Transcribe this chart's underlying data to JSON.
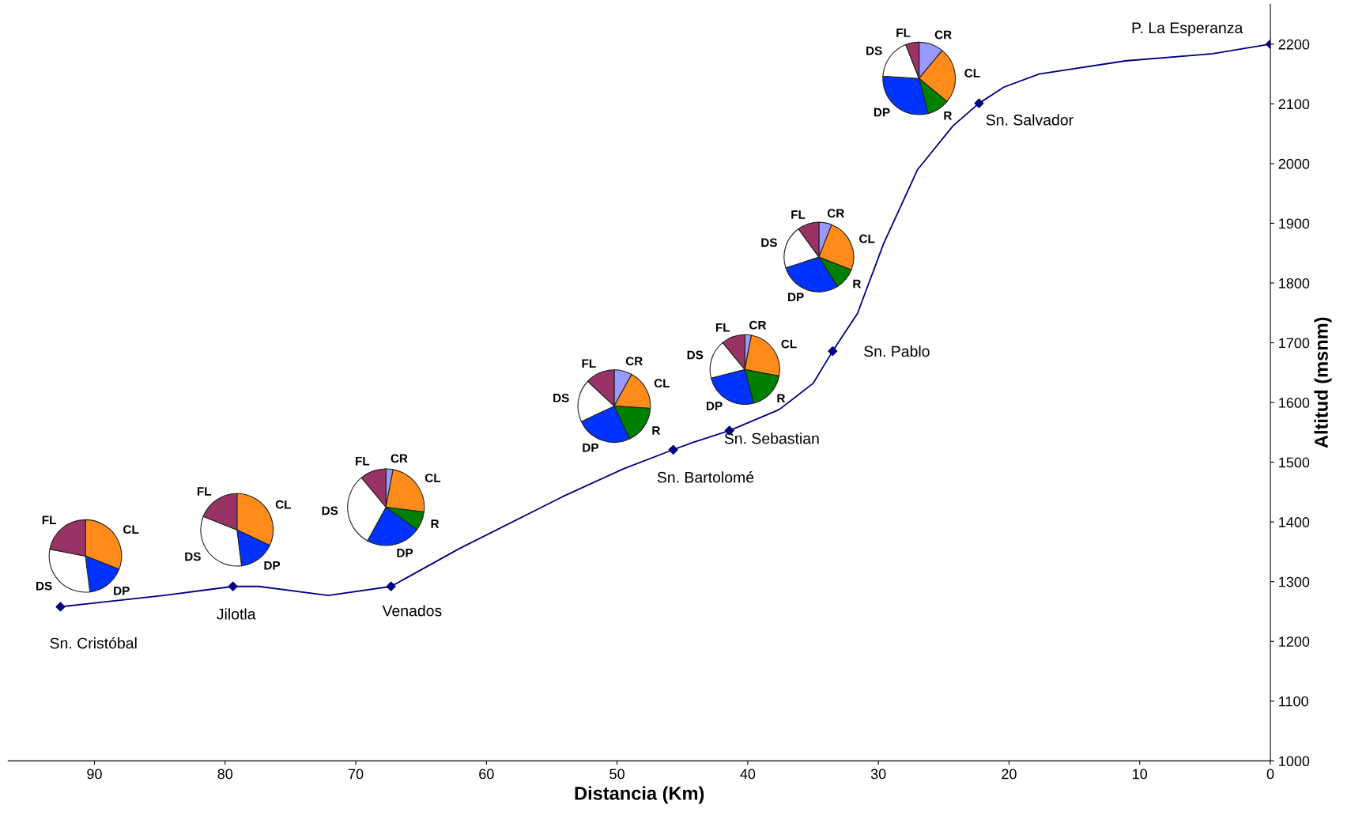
{
  "chart_data": [
    {
      "type": "line",
      "xlabel": "Distancia (Km)",
      "ylabel": "Altitud (msnm)",
      "xlim": [
        96.6,
        0
      ],
      "xticks": [
        90,
        80,
        70,
        60,
        50,
        40,
        30,
        20,
        10,
        0
      ],
      "ylim": [
        1000,
        2267
      ],
      "yticks": [
        1000,
        1100,
        1200,
        1300,
        1400,
        1500,
        1600,
        1700,
        1800,
        1900,
        2000,
        2100,
        2200
      ],
      "grid": false,
      "series": [
        {
          "type": "line",
          "color": "#000080",
          "marker": "none",
          "x": [
            92.6,
            84.7,
            79.4,
            77.4,
            72.1,
            67.3,
            62.1,
            54.2,
            49.5,
            45.7,
            44.2,
            41.4,
            37.6,
            35.0,
            33.5,
            31.6,
            29.6,
            27.0,
            24.3,
            22.3,
            20.4,
            17.7,
            11.1,
            4.4,
            0
          ],
          "values": [
            1258,
            1277,
            1292,
            1292,
            1277,
            1292,
            1355,
            1442,
            1489,
            1521,
            1533,
            1553,
            1588,
            1632,
            1686,
            1749,
            1866,
            1990,
            2063,
            2101,
            2128,
            2150,
            2172,
            2184,
            2200
          ]
        },
        {
          "type": "scatter",
          "color": "#000080",
          "marker": "diamond",
          "x": [
            92.6,
            79.4,
            67.3,
            45.7,
            41.4,
            33.5,
            22.3,
            0
          ],
          "values": [
            1258,
            1292,
            1292,
            1521,
            1553,
            1686,
            2101,
            2200
          ]
        }
      ],
      "annotations": [
        {
          "text": "Sn. Cristóbal",
          "x": 92.6,
          "y": 1258
        },
        {
          "text": "Jilotla",
          "x": 79.4,
          "y": 1292
        },
        {
          "text": "Venados",
          "x": 67.3,
          "y": 1292
        },
        {
          "text": "Sn. Bartolomé",
          "x": 45.7,
          "y": 1521
        },
        {
          "text": "Sn. Sebastian",
          "x": 41.4,
          "y": 1553
        },
        {
          "text": "Sn. Pablo",
          "x": 33.5,
          "y": 1686
        },
        {
          "text": "Sn. Salvador",
          "x": 22.3,
          "y": 2101
        },
        {
          "text": "P. La Esperanza",
          "x": 0,
          "y": 2200
        }
      ]
    },
    {
      "type": "pie",
      "categories": [
        "CL",
        "DP",
        "DS",
        "FL"
      ],
      "values": [
        31,
        17,
        30,
        22
      ],
      "colors": [
        "#ff8c1a",
        "#0033ff",
        "#ffffff",
        "#993366"
      ]
    },
    {
      "type": "pie",
      "categories": [
        "CL",
        "DP",
        "DS",
        "FL"
      ],
      "values": [
        32,
        16,
        33,
        19
      ],
      "colors": [
        "#ff8c1a",
        "#0033ff",
        "#ffffff",
        "#993366"
      ]
    },
    {
      "type": "pie",
      "categories": [
        "CR",
        "CL",
        "R",
        "DP",
        "DS",
        "FL"
      ],
      "values": [
        3,
        24,
        8,
        23,
        31,
        11
      ],
      "colors": [
        "#9999ff",
        "#ff8c1a",
        "#008000",
        "#0033ff",
        "#ffffff",
        "#993366"
      ]
    },
    {
      "type": "pie",
      "categories": [
        "CR",
        "CL",
        "R",
        "DP",
        "DS",
        "FL"
      ],
      "values": [
        8,
        18,
        17,
        25,
        19,
        13
      ],
      "colors": [
        "#9999ff",
        "#ff8c1a",
        "#008000",
        "#0033ff",
        "#ffffff",
        "#993366"
      ]
    },
    {
      "type": "pie",
      "categories": [
        "CR",
        "CL",
        "R",
        "DP",
        "DS",
        "FL"
      ],
      "values": [
        3,
        25,
        18,
        25,
        18,
        11
      ],
      "colors": [
        "#9999ff",
        "#ff8c1a",
        "#008000",
        "#0033ff",
        "#ffffff",
        "#993366"
      ]
    },
    {
      "type": "pie",
      "categories": [
        "CR",
        "CL",
        "R",
        "DP",
        "DS",
        "FL"
      ],
      "values": [
        6,
        25,
        10,
        29,
        20,
        10
      ],
      "colors": [
        "#9999ff",
        "#ff8c1a",
        "#008000",
        "#0033ff",
        "#ffffff",
        "#993366"
      ]
    },
    {
      "type": "pie",
      "categories": [
        "CR",
        "CL",
        "R",
        "DP",
        "DS",
        "FL"
      ],
      "values": [
        11,
        25,
        10,
        30,
        18,
        6
      ],
      "colors": [
        "#9999ff",
        "#ff8c1a",
        "#008000",
        "#0033ff",
        "#ffffff",
        "#993366"
      ]
    }
  ]
}
